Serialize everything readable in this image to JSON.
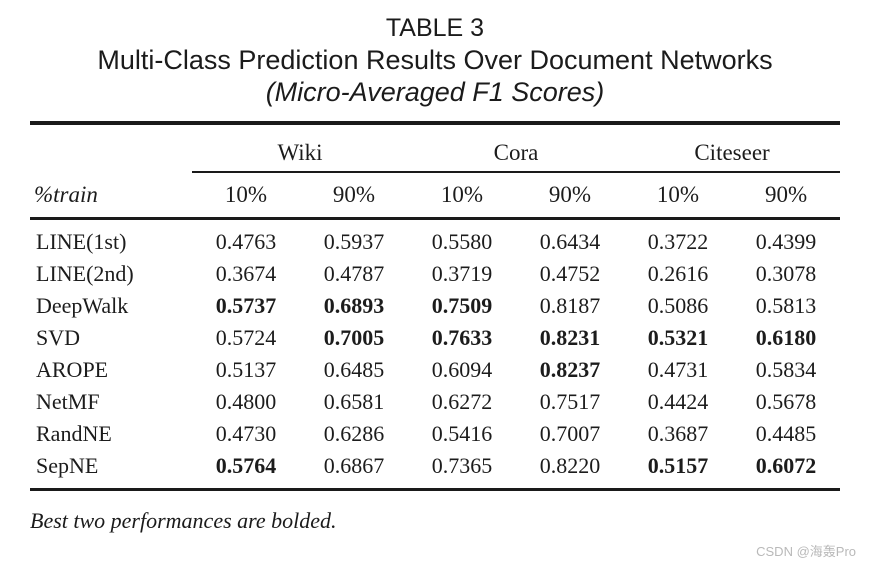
{
  "caption": {
    "line1": "TABLE 3",
    "line2": "Multi-Class Prediction Results Over Document Networks",
    "line3": "(Micro-Averaged F1 Scores)"
  },
  "table": {
    "row_header_label": "%train",
    "groups": [
      {
        "label": "Wiki"
      },
      {
        "label": "Cora"
      },
      {
        "label": "Citeseer"
      }
    ],
    "sub_headers": [
      "10%",
      "90%",
      "10%",
      "90%",
      "10%",
      "90%"
    ],
    "rows": [
      {
        "method": "LINE(1st)",
        "values": [
          "0.4763",
          "0.5937",
          "0.5580",
          "0.6434",
          "0.3722",
          "0.4399"
        ],
        "bold": [
          false,
          false,
          false,
          false,
          false,
          false
        ]
      },
      {
        "method": "LINE(2nd)",
        "values": [
          "0.3674",
          "0.4787",
          "0.3719",
          "0.4752",
          "0.2616",
          "0.3078"
        ],
        "bold": [
          false,
          false,
          false,
          false,
          false,
          false
        ]
      },
      {
        "method": "DeepWalk",
        "values": [
          "0.5737",
          "0.6893",
          "0.7509",
          "0.8187",
          "0.5086",
          "0.5813"
        ],
        "bold": [
          true,
          true,
          true,
          false,
          false,
          false
        ]
      },
      {
        "method": "SVD",
        "values": [
          "0.5724",
          "0.7005",
          "0.7633",
          "0.8231",
          "0.5321",
          "0.6180"
        ],
        "bold": [
          false,
          true,
          true,
          true,
          true,
          true
        ]
      },
      {
        "method": "AROPE",
        "values": [
          "0.5137",
          "0.6485",
          "0.6094",
          "0.8237",
          "0.4731",
          "0.5834"
        ],
        "bold": [
          false,
          false,
          false,
          true,
          false,
          false
        ]
      },
      {
        "method": "NetMF",
        "values": [
          "0.4800",
          "0.6581",
          "0.6272",
          "0.7517",
          "0.4424",
          "0.5678"
        ],
        "bold": [
          false,
          false,
          false,
          false,
          false,
          false
        ]
      },
      {
        "method": "RandNE",
        "values": [
          "0.4730",
          "0.6286",
          "0.5416",
          "0.7007",
          "0.3687",
          "0.4485"
        ],
        "bold": [
          false,
          false,
          false,
          false,
          false,
          false
        ]
      },
      {
        "method": "SepNE",
        "values": [
          "0.5764",
          "0.6867",
          "0.7365",
          "0.8220",
          "0.5157",
          "0.6072"
        ],
        "bold": [
          true,
          false,
          false,
          false,
          true,
          true
        ]
      }
    ],
    "footnote": "Best two performances are bolded."
  },
  "watermark": "CSDN @海轰Pro",
  "colors": {
    "text": "#1c1c1c",
    "rule": "#1a1a1a",
    "watermark": "#b9b9b9",
    "background": "#ffffff"
  }
}
